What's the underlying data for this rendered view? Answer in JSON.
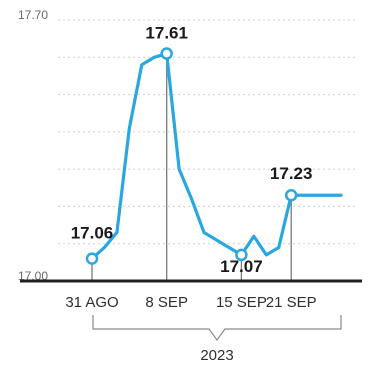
{
  "chart_data": {
    "type": "line",
    "ylim": [
      17.0,
      17.7
    ],
    "y_tick_labels": [
      "17.70",
      "17.00"
    ],
    "categories": [
      "31 AGO",
      "8 SEP",
      "15 SEP",
      "21 SEP"
    ],
    "x_group_label": "2023",
    "grid": true,
    "series": [
      {
        "color": "#2aa7df",
        "x": [
          0,
          1,
          2,
          3,
          4,
          5,
          6,
          7,
          8,
          9,
          10,
          11,
          12,
          13,
          14,
          15,
          16,
          17,
          18,
          19,
          20
        ],
        "values": [
          17.06,
          17.09,
          17.13,
          17.41,
          17.58,
          17.6,
          17.61,
          17.3,
          17.22,
          17.13,
          17.11,
          17.09,
          17.07,
          17.12,
          17.07,
          17.09,
          17.23,
          17.23,
          17.23,
          17.23,
          17.23
        ]
      }
    ],
    "highlighted_points": [
      {
        "label": "17.06",
        "x": 0,
        "value": 17.06
      },
      {
        "label": "17.61",
        "x": 6,
        "value": 17.61
      },
      {
        "label": "17.07",
        "x": 12,
        "value": 17.07
      },
      {
        "label": "17.23",
        "x": 16,
        "value": 17.23
      }
    ],
    "category_positions": [
      0,
      6,
      12,
      16
    ]
  }
}
